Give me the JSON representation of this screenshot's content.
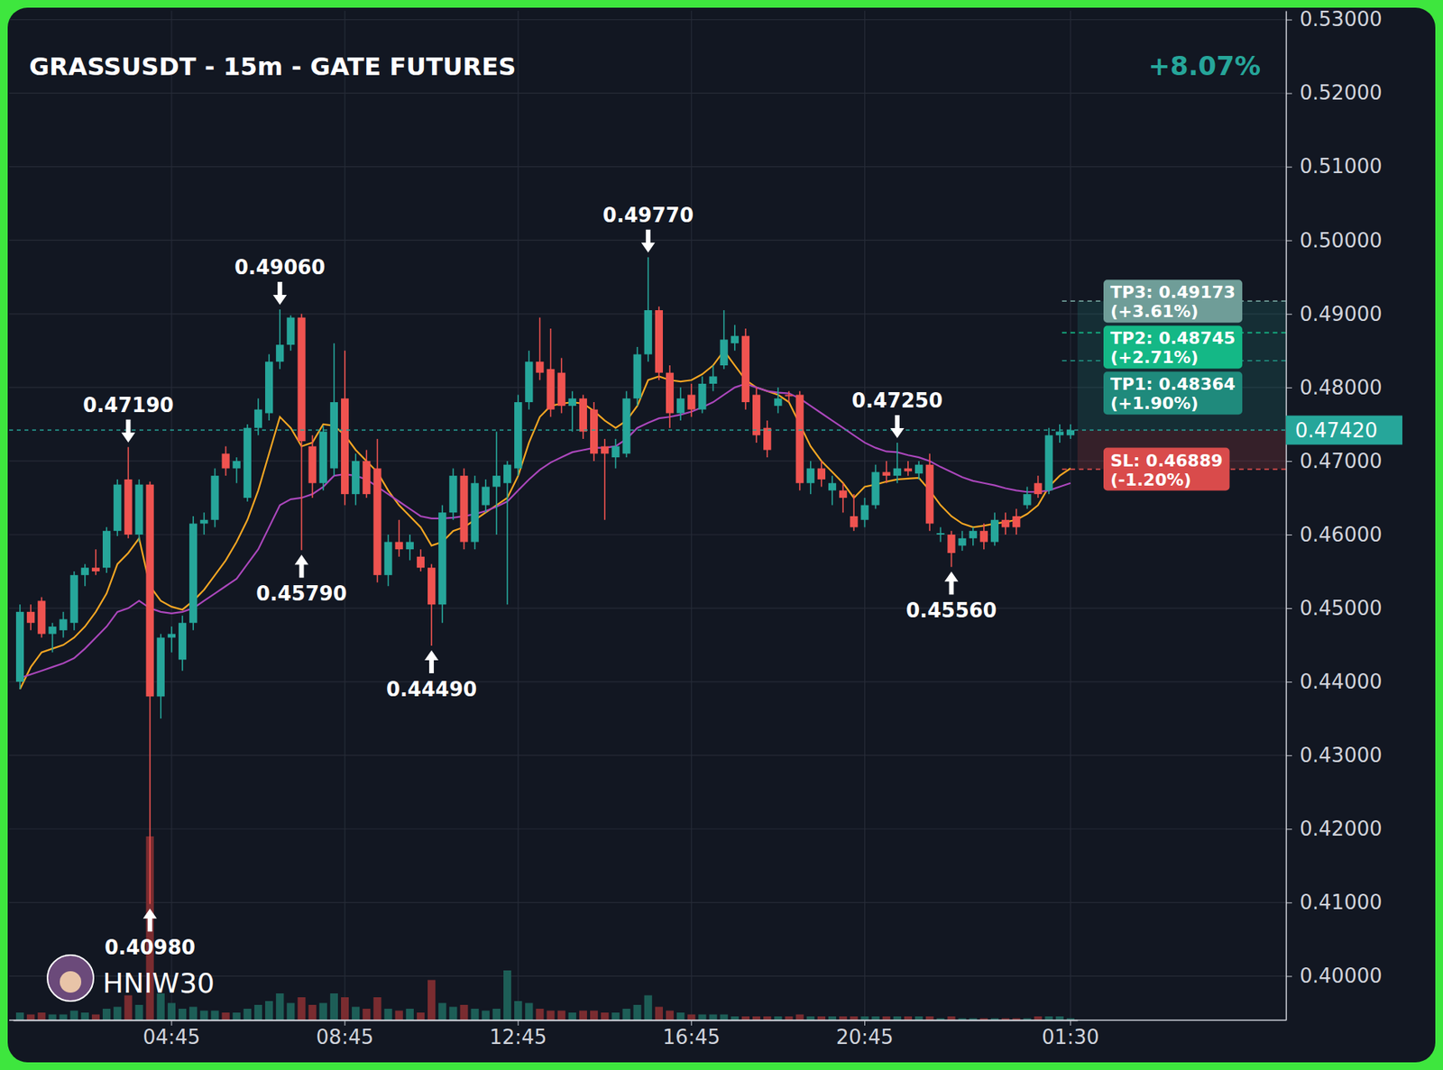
{
  "chart_data": {
    "type": "candlestick",
    "title": "GRASSUSDT - 15m - GATE FUTURES",
    "subtitle": "+8.07%",
    "watermark": "HNIW30",
    "grid": true,
    "categories": [
      null,
      null,
      null,
      null,
      null,
      null,
      null,
      null,
      null,
      null,
      null,
      null,
      null,
      null,
      "04:45",
      null,
      null,
      null,
      null,
      null,
      null,
      null,
      null,
      null,
      null,
      null,
      null,
      null,
      null,
      null,
      "08:45",
      null,
      null,
      null,
      null,
      null,
      null,
      null,
      null,
      null,
      null,
      null,
      null,
      null,
      null,
      null,
      "12:45",
      null,
      null,
      null,
      null,
      null,
      null,
      null,
      null,
      null,
      null,
      null,
      null,
      null,
      null,
      null,
      "16:45",
      null,
      null,
      null,
      null,
      null,
      null,
      null,
      null,
      null,
      null,
      null,
      null,
      null,
      null,
      null,
      "20:45",
      null,
      null,
      null,
      null,
      null,
      null,
      null,
      null,
      null,
      null,
      null,
      null,
      null,
      null,
      null,
      null,
      null,
      null,
      "01:30"
    ],
    "open": [
      0.44,
      0.4495,
      0.451,
      0.4465,
      0.447,
      0.448,
      0.4545,
      0.4555,
      0.4555,
      0.4605,
      0.4675,
      0.46,
      0.4668,
      0.438,
      0.446,
      0.443,
      0.448,
      0.4615,
      0.462,
      0.471,
      0.469,
      0.465,
      0.4745,
      0.4765,
      0.4835,
      0.4858,
      0.4895,
      0.472,
      0.467,
      0.469,
      0.4785,
      0.4655,
      0.47,
      0.469,
      0.4545,
      0.459,
      0.458,
      0.457,
      0.4555,
      0.4505,
      0.463,
      0.468,
      0.459,
      0.464,
      0.4665,
      0.467,
      0.469,
      0.478,
      0.4835,
      0.4825,
      0.482,
      0.4775,
      0.4785,
      0.477,
      0.472,
      0.4705,
      0.471,
      0.4785,
      0.4845,
      0.4905,
      0.482,
      0.4765,
      0.479,
      0.477,
      0.4805,
      0.483,
      0.486,
      0.487,
      0.479,
      0.4745,
      0.4775,
      0.479,
      0.479,
      0.467,
      0.469,
      0.466,
      0.466,
      0.4625,
      0.462,
      0.464,
      0.4685,
      0.468,
      0.469,
      0.4683,
      0.4695,
      0.46,
      0.46,
      0.4585,
      0.4595,
      0.4605,
      0.459,
      0.462,
      0.4625,
      0.464,
      0.467,
      0.466,
      0.4735,
      0.4735
    ],
    "high": [
      0.4505,
      0.4505,
      0.4515,
      0.448,
      0.4495,
      0.455,
      0.456,
      0.458,
      0.461,
      0.4675,
      0.4719,
      0.4675,
      0.4672,
      0.4465,
      0.4475,
      0.449,
      0.4625,
      0.463,
      0.469,
      0.472,
      0.4705,
      0.475,
      0.4785,
      0.4845,
      0.4906,
      0.4898,
      0.49,
      0.4735,
      0.4748,
      0.486,
      0.485,
      0.471,
      0.4715,
      0.473,
      0.46,
      0.462,
      0.46,
      0.458,
      0.456,
      0.464,
      0.469,
      0.469,
      0.468,
      0.4675,
      0.474,
      0.47,
      0.479,
      0.485,
      0.4895,
      0.488,
      0.484,
      0.4795,
      0.479,
      0.478,
      0.473,
      0.473,
      0.4795,
      0.4855,
      0.4977,
      0.491,
      0.483,
      0.48,
      0.4805,
      0.4815,
      0.483,
      0.4905,
      0.4885,
      0.488,
      0.48,
      0.4755,
      0.48,
      0.4795,
      0.4795,
      0.47,
      0.47,
      0.468,
      0.467,
      0.4655,
      0.465,
      0.4695,
      0.47,
      0.4725,
      0.47,
      0.47,
      0.471,
      0.461,
      0.4605,
      0.4605,
      0.461,
      0.4615,
      0.463,
      0.463,
      0.4635,
      0.4665,
      0.468,
      0.4745,
      0.475,
      0.475
    ],
    "low": [
      0.439,
      0.447,
      0.446,
      0.444,
      0.446,
      0.447,
      0.453,
      0.4545,
      0.4548,
      0.4598,
      0.4595,
      0.459,
      0.4098,
      0.435,
      0.444,
      0.4415,
      0.447,
      0.46,
      0.461,
      0.468,
      0.467,
      0.4645,
      0.4735,
      0.4755,
      0.4825,
      0.485,
      0.4579,
      0.465,
      0.466,
      0.468,
      0.464,
      0.464,
      0.465,
      0.4535,
      0.453,
      0.457,
      0.4565,
      0.455,
      0.4449,
      0.448,
      0.462,
      0.458,
      0.458,
      0.463,
      0.46,
      0.4505,
      0.468,
      0.477,
      0.481,
      0.476,
      0.4765,
      0.474,
      0.473,
      0.47,
      0.462,
      0.469,
      0.4705,
      0.4775,
      0.4835,
      0.481,
      0.4745,
      0.4755,
      0.476,
      0.4765,
      0.4795,
      0.4825,
      0.485,
      0.477,
      0.4725,
      0.4705,
      0.4765,
      0.478,
      0.466,
      0.4655,
      0.4665,
      0.464,
      0.463,
      0.4605,
      0.461,
      0.4635,
      0.467,
      0.467,
      0.468,
      0.4675,
      0.4605,
      0.459,
      0.4556,
      0.4578,
      0.4585,
      0.458,
      0.4585,
      0.46,
      0.46,
      0.4635,
      0.465,
      0.4655,
      0.4725,
      0.473
    ],
    "close": [
      0.4495,
      0.448,
      0.4465,
      0.4475,
      0.4485,
      0.4545,
      0.4555,
      0.455,
      0.4605,
      0.4668,
      0.46,
      0.4668,
      0.438,
      0.446,
      0.4465,
      0.448,
      0.4615,
      0.462,
      0.468,
      0.469,
      0.47,
      0.4745,
      0.477,
      0.4835,
      0.4858,
      0.4895,
      0.4727,
      0.467,
      0.474,
      0.478,
      0.4655,
      0.47,
      0.4655,
      0.4545,
      0.459,
      0.458,
      0.459,
      0.4555,
      0.4505,
      0.463,
      0.468,
      0.459,
      0.467,
      0.4665,
      0.468,
      0.4695,
      0.478,
      0.4835,
      0.482,
      0.477,
      0.4775,
      0.4785,
      0.474,
      0.471,
      0.471,
      0.472,
      0.4785,
      0.4845,
      0.4905,
      0.482,
      0.4765,
      0.4785,
      0.477,
      0.4805,
      0.4815,
      0.4865,
      0.487,
      0.478,
      0.4735,
      0.4715,
      0.4785,
      0.4788,
      0.467,
      0.469,
      0.4675,
      0.467,
      0.465,
      0.461,
      0.464,
      0.4685,
      0.468,
      0.469,
      0.4686,
      0.4695,
      0.4615,
      0.4602,
      0.4575,
      0.4595,
      0.4605,
      0.459,
      0.462,
      0.461,
      0.461,
      0.4655,
      0.4655,
      0.4735,
      0.474,
      0.4742
    ],
    "volume": [
      4,
      3,
      4,
      3,
      3,
      5,
      4,
      3,
      6,
      7,
      13,
      8,
      96,
      14,
      9,
      6,
      7,
      5,
      5,
      4,
      4,
      6,
      8,
      10,
      14,
      9,
      12,
      8,
      9,
      14,
      12,
      7,
      6,
      12,
      6,
      5,
      6,
      4,
      21,
      9,
      7,
      8,
      6,
      5,
      6,
      26,
      10,
      9,
      6,
      5,
      5,
      4,
      5,
      5,
      4,
      4,
      6,
      8,
      13,
      7,
      5,
      4,
      3,
      3,
      3,
      3,
      2,
      2,
      2,
      2,
      2,
      2,
      3,
      2,
      2,
      2,
      2,
      2,
      2,
      2,
      2,
      2,
      2,
      2,
      2,
      1,
      2,
      1,
      1,
      1,
      1,
      1,
      1,
      1,
      2,
      2,
      2,
      1
    ],
    "volume_lim": [
      0,
      100
    ],
    "series": [
      {
        "type": "line",
        "color": "#f5a623",
        "values": [
          0.439,
          0.442,
          0.444,
          0.4445,
          0.445,
          0.446,
          0.4475,
          0.4495,
          0.452,
          0.456,
          0.4575,
          0.4595,
          0.453,
          0.451,
          0.4502,
          0.4498,
          0.451,
          0.4525,
          0.4545,
          0.4565,
          0.459,
          0.462,
          0.466,
          0.471,
          0.476,
          0.4745,
          0.472,
          0.4725,
          0.475,
          0.4748,
          0.4735,
          0.4715,
          0.47,
          0.4685,
          0.466,
          0.464,
          0.4625,
          0.461,
          0.4585,
          0.459,
          0.4605,
          0.461,
          0.462,
          0.463,
          0.464,
          0.465,
          0.468,
          0.4725,
          0.476,
          0.4775,
          0.4778,
          0.478,
          0.4778,
          0.4768,
          0.4755,
          0.4745,
          0.4755,
          0.4775,
          0.481,
          0.4815,
          0.481,
          0.4808,
          0.481,
          0.4818,
          0.483,
          0.485,
          0.483,
          0.481,
          0.48,
          0.4795,
          0.479,
          0.478,
          0.475,
          0.472,
          0.47,
          0.4685,
          0.467,
          0.465,
          0.4665,
          0.4668,
          0.4672,
          0.4675,
          0.4676,
          0.4677,
          0.466,
          0.464,
          0.4625,
          0.4615,
          0.461,
          0.4612,
          0.4615,
          0.4617,
          0.462,
          0.4628,
          0.464,
          0.4665,
          0.468,
          0.469
        ]
      },
      {
        "type": "line",
        "color": "#ab47bc",
        "values": [
          0.4405,
          0.441,
          0.4415,
          0.442,
          0.4425,
          0.4432,
          0.4445,
          0.446,
          0.4475,
          0.4495,
          0.45,
          0.451,
          0.45,
          0.4495,
          0.4493,
          0.4495,
          0.45,
          0.451,
          0.452,
          0.453,
          0.454,
          0.456,
          0.458,
          0.461,
          0.464,
          0.4648,
          0.465,
          0.4655,
          0.4665,
          0.468,
          0.4682,
          0.468,
          0.4675,
          0.4665,
          0.4655,
          0.4645,
          0.4635,
          0.4625,
          0.4622,
          0.4622,
          0.4623,
          0.4625,
          0.4628,
          0.4632,
          0.4638,
          0.4645,
          0.466,
          0.4675,
          0.4688,
          0.4698,
          0.4705,
          0.4712,
          0.4715,
          0.4718,
          0.4718,
          0.472,
          0.473,
          0.4745,
          0.4752,
          0.4758,
          0.476,
          0.4763,
          0.4767,
          0.4773,
          0.478,
          0.479,
          0.48,
          0.4805,
          0.48,
          0.4795,
          0.4793,
          0.4792,
          0.4785,
          0.4775,
          0.4765,
          0.4755,
          0.4745,
          0.4735,
          0.4725,
          0.4718,
          0.4713,
          0.4712,
          0.4708,
          0.4705,
          0.47,
          0.4692,
          0.4685,
          0.4678,
          0.4673,
          0.467,
          0.4667,
          0.4663,
          0.466,
          0.4658,
          0.4658,
          0.466,
          0.4665,
          0.467
        ]
      }
    ],
    "ylim": [
      0.394,
      0.5312
    ],
    "yticks": [
      {
        "value": 0.4,
        "label": "0.40000"
      },
      {
        "value": 0.41,
        "label": "0.41000"
      },
      {
        "value": 0.42,
        "label": "0.42000"
      },
      {
        "value": 0.43,
        "label": "0.43000"
      },
      {
        "value": 0.44,
        "label": "0.44000"
      },
      {
        "value": 0.45,
        "label": "0.45000"
      },
      {
        "value": 0.46,
        "label": "0.46000"
      },
      {
        "value": 0.47,
        "label": "0.47000"
      },
      {
        "value": 0.48,
        "label": "0.48000"
      },
      {
        "value": 0.49,
        "label": "0.49000"
      },
      {
        "value": 0.5,
        "label": "0.50000"
      },
      {
        "value": 0.51,
        "label": "0.51000"
      },
      {
        "value": 0.52,
        "label": "0.52000"
      },
      {
        "value": 0.53,
        "label": "0.53000"
      }
    ],
    "annotations": [
      {
        "text": "0.47190",
        "value": 0.4719,
        "index": 10,
        "kind": "high"
      },
      {
        "text": "0.40980",
        "value": 0.4098,
        "index": 12,
        "kind": "low"
      },
      {
        "text": "0.49060",
        "value": 0.4906,
        "index": 24,
        "kind": "high"
      },
      {
        "text": "0.45790",
        "value": 0.4579,
        "index": 26,
        "kind": "low"
      },
      {
        "text": "0.44490",
        "value": 0.4449,
        "index": 38,
        "kind": "low"
      },
      {
        "text": "0.49770",
        "value": 0.4977,
        "index": 58,
        "kind": "high"
      },
      {
        "text": "0.47250",
        "value": 0.4725,
        "index": 81,
        "kind": "high"
      },
      {
        "text": "0.45560",
        "value": 0.4556,
        "index": 86,
        "kind": "low"
      }
    ],
    "last_price": {
      "value": 0.4742,
      "label": "0.47420",
      "color": "#26a69a"
    },
    "levels": [
      {
        "label": "TP3: 0.49173",
        "change": "(+3.61%)",
        "value": 0.49173,
        "color": "#6f9d98"
      },
      {
        "label": "TP2: 0.48745",
        "change": "(+2.71%)",
        "value": 0.48745,
        "color": "#14b886"
      },
      {
        "label": "TP1: 0.48364",
        "change": "(+1.90%)",
        "value": 0.48364,
        "color": "#1f8a7c"
      },
      {
        "label": "SL: 0.46889",
        "change": "(-1.20%)",
        "value": 0.46889,
        "color": "#d94b4b"
      }
    ]
  }
}
